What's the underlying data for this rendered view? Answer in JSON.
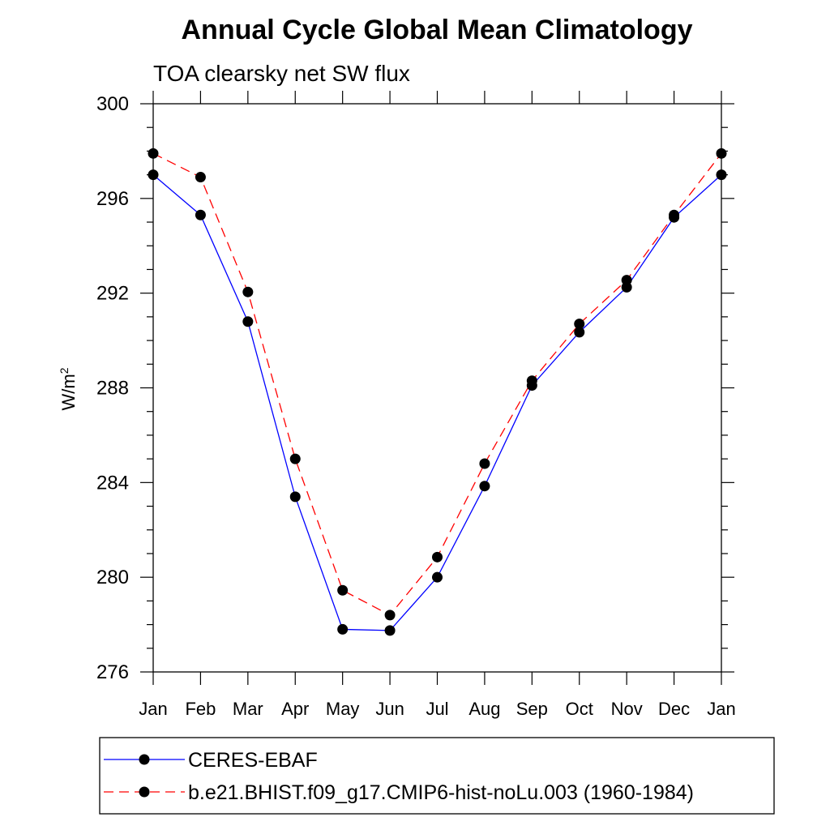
{
  "chart_data": {
    "type": "line",
    "title": "Annual Cycle Global Mean Climatology",
    "subtitle": "TOA clearsky net SW flux",
    "ylabel": "W/m",
    "ylabel_superscript": "2",
    "ylim": [
      276,
      300
    ],
    "yticks": [
      "276",
      "280",
      "284",
      "288",
      "292",
      "296",
      "300"
    ],
    "categories": [
      "Jan",
      "Feb",
      "Mar",
      "Apr",
      "May",
      "Jun",
      "Jul",
      "Aug",
      "Sep",
      "Oct",
      "Nov",
      "Dec",
      "Jan"
    ],
    "grid": false,
    "legend_position": "bottom",
    "series": [
      {
        "name": "CERES-EBAF",
        "color": "#0000ff",
        "dashed": false,
        "values": [
          297.0,
          295.3,
          290.8,
          283.4,
          277.8,
          277.75,
          280.0,
          283.85,
          288.1,
          290.35,
          292.25,
          295.2,
          297.0
        ]
      },
      {
        "name": "b.e21.BHIST.f09_g17.CMIP6-hist-noLu.003 (1960-1984)",
        "color": "#ff0000",
        "dashed": true,
        "values": [
          297.9,
          296.9,
          292.05,
          285.0,
          279.45,
          278.4,
          280.85,
          284.8,
          288.3,
          290.7,
          292.55,
          295.3,
          297.9
        ]
      }
    ]
  }
}
